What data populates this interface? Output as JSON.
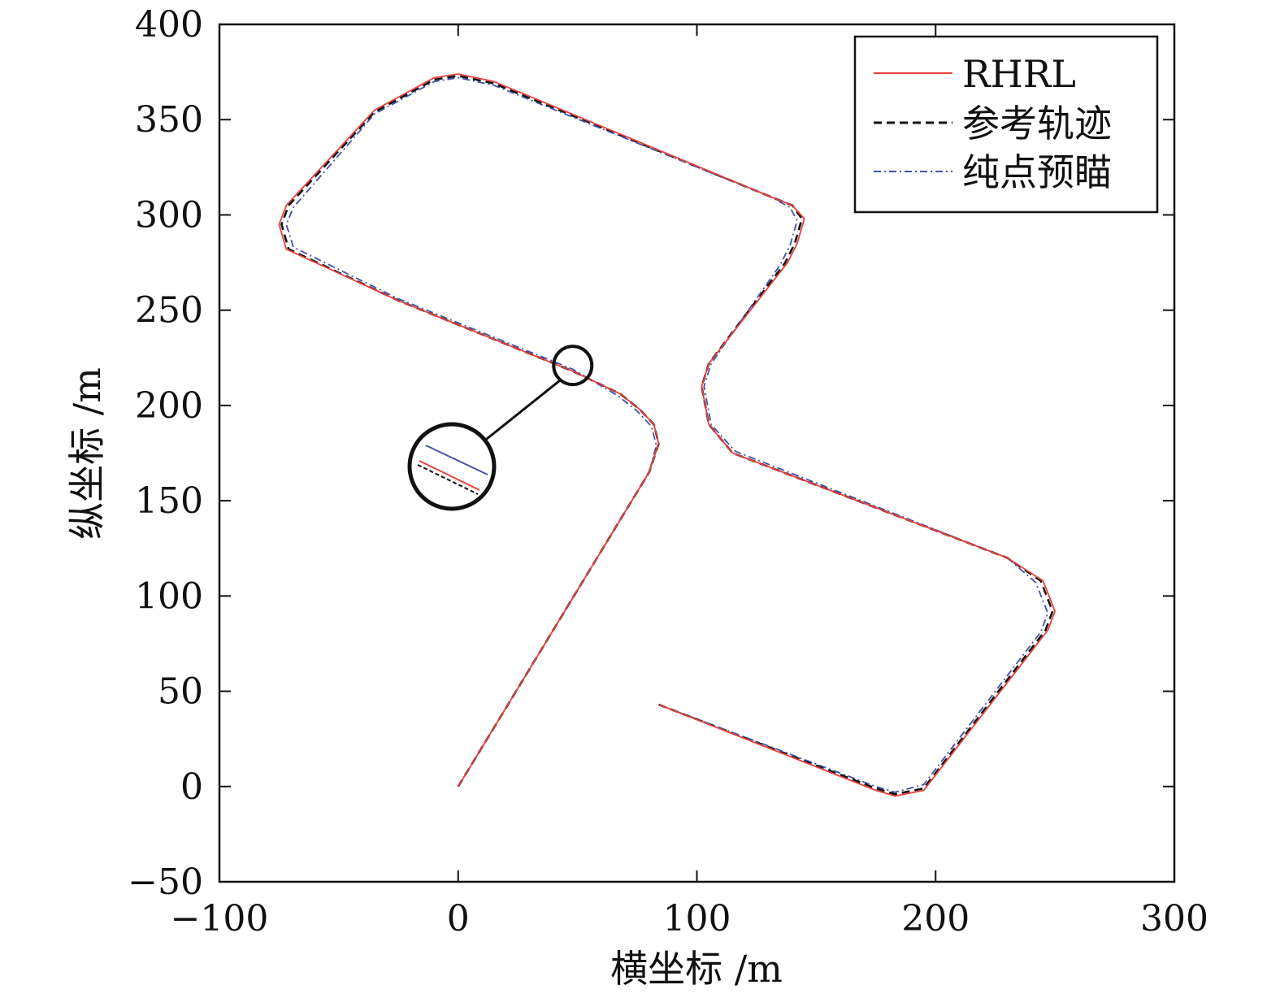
{
  "chart_data": {
    "type": "line",
    "title": "",
    "xlabel": "横坐标 /m",
    "ylabel": "纵坐标 /m",
    "xlim": [
      -100,
      300
    ],
    "ylim": [
      -50,
      400
    ],
    "xticks": [
      -100,
      0,
      100,
      200,
      300
    ],
    "xtick_labels": [
      "−100",
      "0",
      "100",
      "200",
      "300"
    ],
    "yticks": [
      -50,
      0,
      50,
      100,
      150,
      200,
      250,
      300,
      350,
      400
    ],
    "ytick_labels": [
      "−50",
      "0",
      "50",
      "100",
      "150",
      "200",
      "250",
      "300",
      "350",
      "400"
    ],
    "grid": false,
    "legend_position": "top-right",
    "series": [
      {
        "name": "RHRL",
        "color": "#e8413b",
        "style": "solid",
        "x": [
          0,
          80,
          84,
          82,
          76,
          68,
          48,
          -25,
          -72,
          -75,
          -72,
          -35,
          -10,
          0,
          15,
          130,
          140,
          145,
          142,
          138,
          105,
          102,
          105,
          115,
          230,
          245,
          250,
          247,
          195,
          183,
          175,
          84
        ],
        "y": [
          0,
          165,
          180,
          190,
          198,
          206,
          218,
          255,
          282,
          295,
          305,
          355,
          372,
          374,
          370,
          310,
          305,
          298,
          285,
          275,
          222,
          210,
          190,
          175,
          120,
          108,
          92,
          82,
          -2,
          -5,
          -2,
          43
        ]
      },
      {
        "name": "参考轨迹",
        "color": "#111111",
        "style": "dashed",
        "x": [
          0,
          80,
          84,
          82,
          76,
          68,
          48,
          -25,
          -71,
          -74,
          -71,
          -35,
          -10,
          0,
          15,
          130,
          140,
          144,
          141,
          137,
          105,
          102,
          105,
          115,
          230,
          244,
          249,
          246,
          195,
          183,
          175,
          84
        ],
        "y": [
          0,
          165,
          180,
          190,
          198,
          206,
          218,
          255,
          282,
          295,
          305,
          354,
          371,
          373,
          369,
          310,
          305,
          298,
          285,
          275,
          222,
          210,
          190,
          175,
          120,
          108,
          92,
          82,
          -1,
          -4,
          -1,
          43
        ]
      },
      {
        "name": "纯点预瞄",
        "color": "#4452a8",
        "style": "dashdot",
        "x": [
          0,
          80,
          83,
          81,
          75,
          67,
          48,
          -25,
          -69,
          -72,
          -69,
          -35,
          -10,
          0,
          15,
          130,
          139,
          142,
          139,
          135,
          106,
          103,
          106,
          116,
          230,
          242,
          247,
          244,
          195,
          183,
          175,
          84
        ],
        "y": [
          0,
          165,
          179,
          189,
          197,
          205,
          219,
          256,
          283,
          295,
          304,
          353,
          370,
          372,
          368,
          310,
          304,
          297,
          284,
          274,
          222,
          210,
          190,
          176,
          120,
          107,
          91,
          81,
          1,
          -3,
          0,
          43
        ]
      }
    ],
    "annotations": {
      "zoom_circle_center": [
        48,
        221
      ],
      "zoom_circle_radius_data": 8
    }
  }
}
